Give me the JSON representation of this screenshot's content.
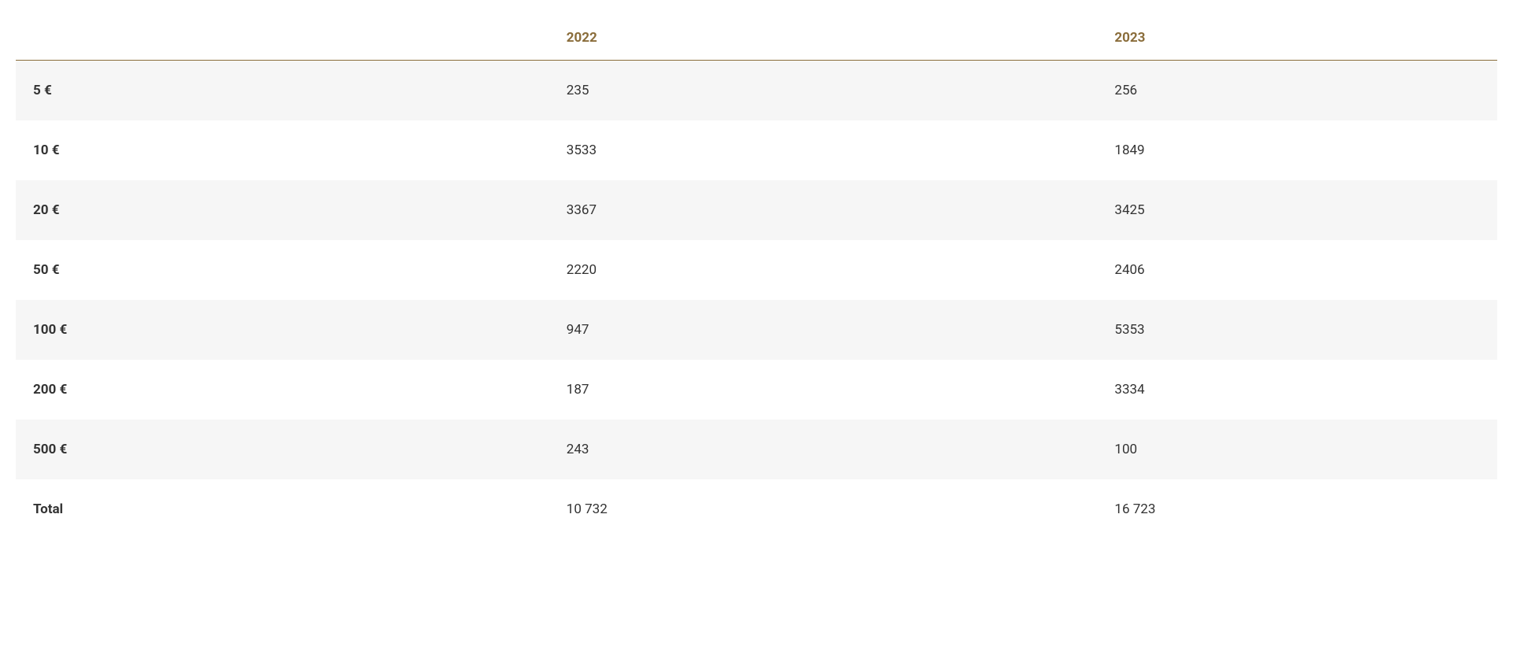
{
  "table": {
    "columns": [
      "",
      "2022",
      "2023"
    ],
    "rows": [
      [
        "5 €",
        "235",
        "256"
      ],
      [
        "10 €",
        "3533",
        "1849"
      ],
      [
        "20 €",
        "3367",
        "3425"
      ],
      [
        "50 €",
        "2220",
        "2406"
      ],
      [
        "100 €",
        "947",
        "5353"
      ],
      [
        "200 €",
        "187",
        "3334"
      ],
      [
        "500 €",
        "243",
        "100"
      ],
      [
        "Total",
        "10 732",
        "16 723"
      ]
    ],
    "header_color": "#8a6d3b",
    "header_border_color": "#8a6d3b",
    "row_stripe_color": "#f6f6f6",
    "row_default_color": "#ffffff",
    "text_color": "#333333",
    "font_size": 17,
    "cell_padding_v": 28,
    "cell_padding_h": 22,
    "header_padding_v": 18,
    "first_col_bold": true
  }
}
